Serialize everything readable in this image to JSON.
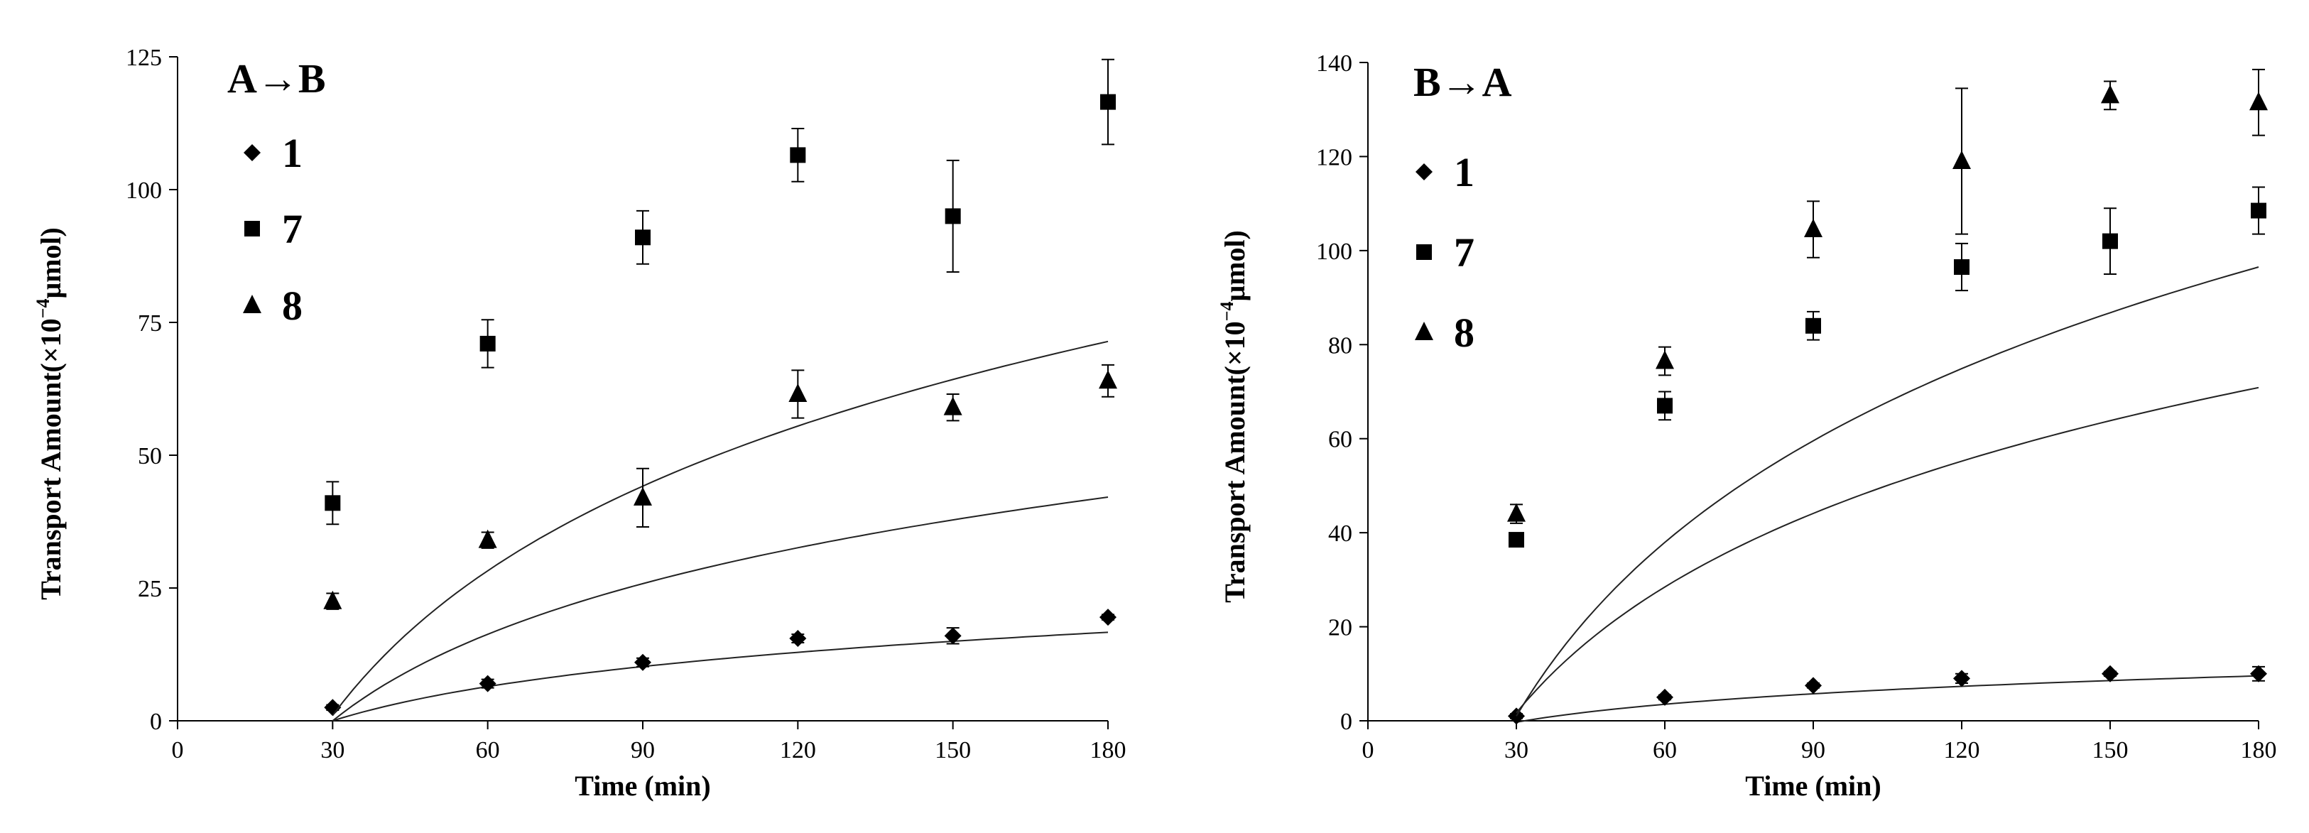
{
  "chart_data": [
    {
      "type": "scatter",
      "panel_label": "A→B",
      "xlabel": "Time (min)",
      "ylabel_main": "Transport Amount(",
      "ylabel_x": "×",
      "ylabel_ten": "10",
      "ylabel_exp": "−4",
      "ylabel_unit": "μmol)",
      "xlim": [
        0,
        180
      ],
      "ylim": [
        0,
        125
      ],
      "xticks": [
        0,
        30,
        60,
        90,
        120,
        150,
        180
      ],
      "yticks": [
        0,
        25,
        50,
        75,
        100,
        125
      ],
      "xtick_labels": [
        "0",
        "30",
        "60",
        "90",
        "120",
        "150",
        "180"
      ],
      "ytick_labels": [
        "0",
        "25",
        "50",
        "75",
        "100",
        "125"
      ],
      "grid": false,
      "legend_position": "top-left",
      "series": [
        {
          "name": "1",
          "marker": "diamond",
          "x": [
            30,
            60,
            90,
            120,
            150,
            180
          ],
          "values": [
            2.5,
            7,
            11,
            15.5,
            16,
            19.5
          ],
          "errors": [
            0.5,
            0.8,
            0.8,
            0.8,
            1.5,
            0.5
          ],
          "fit": {
            "a": 9.3,
            "b": 0.0
          }
        },
        {
          "name": "7",
          "marker": "square",
          "x": [
            30,
            60,
            90,
            120,
            150,
            180
          ],
          "values": [
            41,
            71,
            91,
            106.5,
            95,
            116.5
          ],
          "errors": [
            4,
            4.5,
            5,
            5,
            10.5,
            8
          ],
          "fit": {
            "a": 39.3,
            "b": 1.0
          }
        },
        {
          "name": "8",
          "marker": "triangle",
          "x": [
            30,
            60,
            90,
            120,
            150,
            180
          ],
          "values": [
            22.5,
            34,
            42,
            61.5,
            59,
            64
          ],
          "errors": [
            1.5,
            1.5,
            5.5,
            4.5,
            2.5,
            3
          ],
          "fit": {
            "a": 23.5,
            "b": 0.0
          }
        }
      ]
    },
    {
      "type": "scatter",
      "panel_label": "B→A",
      "xlabel": "Time (min)",
      "ylabel_main": "Transport Amount(",
      "ylabel_x": "×",
      "ylabel_ten": "10",
      "ylabel_exp": "−4",
      "ylabel_unit": "μmol)",
      "xlim": [
        0,
        180
      ],
      "ylim": [
        0,
        140
      ],
      "xticks": [
        0,
        30,
        60,
        90,
        120,
        150,
        180
      ],
      "yticks": [
        0,
        20,
        40,
        60,
        80,
        100,
        120,
        140
      ],
      "xtick_labels": [
        "0",
        "30",
        "60",
        "90",
        "120",
        "150",
        "180"
      ],
      "ytick_labels": [
        "0",
        "20",
        "40",
        "60",
        "80",
        "100",
        "120",
        "140"
      ],
      "grid": false,
      "legend_position": "top-left",
      "series": [
        {
          "name": "1",
          "marker": "diamond",
          "x": [
            30,
            60,
            90,
            120,
            150,
            180
          ],
          "values": [
            1,
            5,
            7.5,
            9,
            10,
            10
          ],
          "errors": [
            0.5,
            0.5,
            0.5,
            1,
            0.5,
            1.5
          ],
          "fit": {
            "a": 5.5,
            "b": -0.3
          }
        },
        {
          "name": "7",
          "marker": "square",
          "x": [
            30,
            60,
            90,
            120,
            150,
            180
          ],
          "values": [
            38.5,
            67,
            84,
            96.5,
            102,
            108.5
          ],
          "errors": [
            1,
            3,
            3,
            5,
            7,
            5
          ],
          "fit": {
            "a": 38.6,
            "b": 1.7
          }
        },
        {
          "name": "8",
          "marker": "triangle",
          "x": [
            30,
            60,
            90,
            120,
            150,
            180
          ],
          "values": [
            44,
            76.5,
            104.5,
            119,
            133,
            131.5
          ],
          "errors": [
            2,
            3,
            6,
            15.5,
            3,
            7
          ],
          "fit": {
            "a": 53.3,
            "b": 1.0
          }
        }
      ]
    }
  ]
}
